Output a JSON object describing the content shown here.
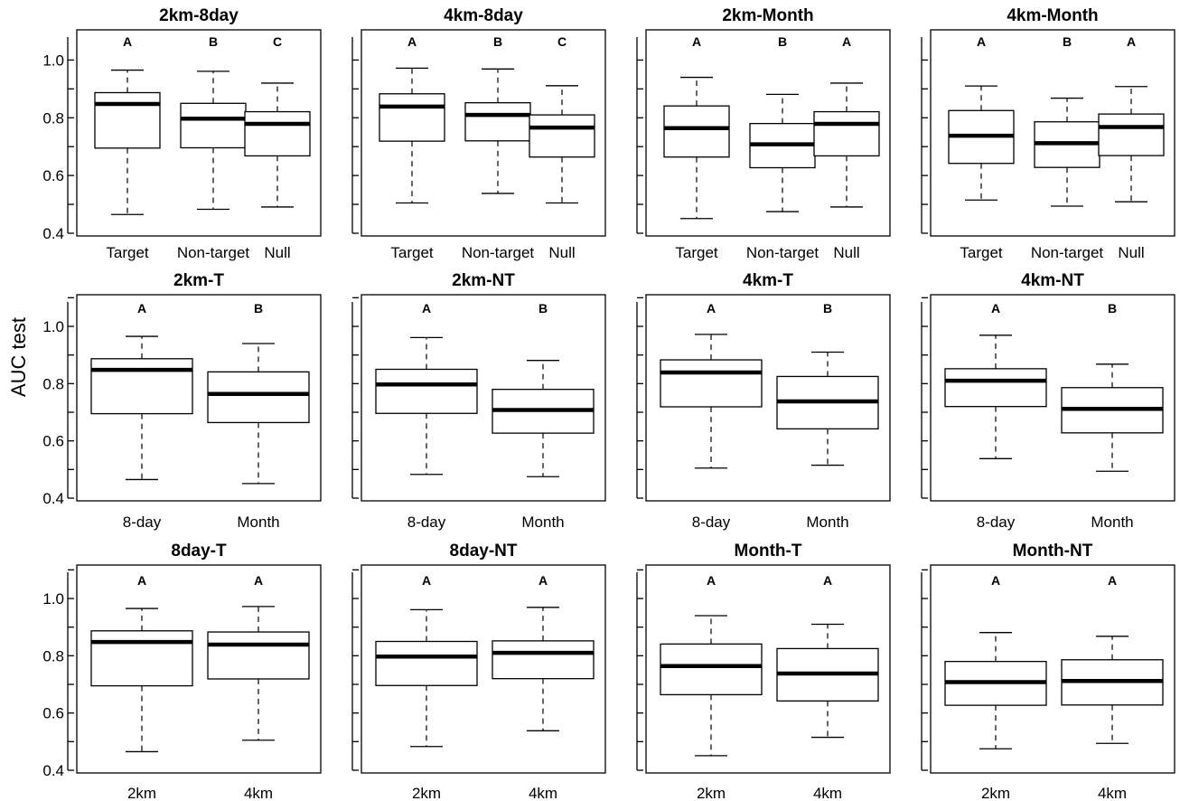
{
  "y_axis_label": "AUC test",
  "chart_data": [
    {
      "type": "box",
      "title": "2km-8day",
      "ylim": [
        0.4,
        1.1
      ],
      "yticks": [
        "0.4",
        "0.6",
        "0.8",
        "1.0"
      ],
      "categories": [
        "Target",
        "Non-target",
        "Null"
      ],
      "letters": [
        "A",
        "B",
        "C"
      ],
      "boxes": [
        {
          "min": 0.465,
          "q1": 0.695,
          "median": 0.848,
          "q3": 0.887,
          "max": 0.965
        },
        {
          "min": 0.483,
          "q1": 0.696,
          "median": 0.797,
          "q3": 0.85,
          "max": 0.961
        },
        {
          "min": 0.491,
          "q1": 0.668,
          "median": 0.779,
          "q3": 0.821,
          "max": 0.92
        }
      ]
    },
    {
      "type": "box",
      "title": "4km-8day",
      "ylim": [
        0.4,
        1.1
      ],
      "yticks": [
        "0.4",
        "0.6",
        "0.8",
        "1.0"
      ],
      "categories": [
        "Target",
        "Non-target",
        "Null"
      ],
      "letters": [
        "A",
        "B",
        "C"
      ],
      "boxes": [
        {
          "min": 0.505,
          "q1": 0.719,
          "median": 0.839,
          "q3": 0.883,
          "max": 0.972
        },
        {
          "min": 0.538,
          "q1": 0.72,
          "median": 0.81,
          "q3": 0.852,
          "max": 0.969
        },
        {
          "min": 0.505,
          "q1": 0.664,
          "median": 0.766,
          "q3": 0.81,
          "max": 0.911
        }
      ]
    },
    {
      "type": "box",
      "title": "2km-Month",
      "ylim": [
        0.4,
        1.1
      ],
      "yticks": [
        "0.4",
        "0.6",
        "0.8",
        "1.0"
      ],
      "categories": [
        "Target",
        "Non-target",
        "Null"
      ],
      "letters": [
        "A",
        "B",
        "A"
      ],
      "boxes": [
        {
          "min": 0.451,
          "q1": 0.664,
          "median": 0.764,
          "q3": 0.841,
          "max": 0.94
        },
        {
          "min": 0.475,
          "q1": 0.627,
          "median": 0.708,
          "q3": 0.78,
          "max": 0.881
        },
        {
          "min": 0.491,
          "q1": 0.668,
          "median": 0.779,
          "q3": 0.821,
          "max": 0.92
        }
      ]
    },
    {
      "type": "box",
      "title": "4km-Month",
      "ylim": [
        0.4,
        1.1
      ],
      "yticks": [
        "0.4",
        "0.6",
        "0.8",
        "1.0"
      ],
      "categories": [
        "Target",
        "Non-target",
        "Null"
      ],
      "letters": [
        "A",
        "B",
        "A"
      ],
      "boxes": [
        {
          "min": 0.515,
          "q1": 0.642,
          "median": 0.738,
          "q3": 0.825,
          "max": 0.91
        },
        {
          "min": 0.494,
          "q1": 0.628,
          "median": 0.712,
          "q3": 0.786,
          "max": 0.868
        },
        {
          "min": 0.509,
          "q1": 0.669,
          "median": 0.768,
          "q3": 0.813,
          "max": 0.908
        }
      ]
    },
    {
      "type": "box",
      "title": "2km-T",
      "ylim": [
        0.4,
        1.1
      ],
      "yticks": [
        "0.4",
        "0.6",
        "0.8",
        "1.0"
      ],
      "categories": [
        "8-day",
        "Month"
      ],
      "letters": [
        "A",
        "B"
      ],
      "boxes": [
        {
          "min": 0.465,
          "q1": 0.695,
          "median": 0.848,
          "q3": 0.887,
          "max": 0.965
        },
        {
          "min": 0.451,
          "q1": 0.664,
          "median": 0.764,
          "q3": 0.841,
          "max": 0.94
        }
      ]
    },
    {
      "type": "box",
      "title": "2km-NT",
      "ylim": [
        0.4,
        1.1
      ],
      "yticks": [
        "0.4",
        "0.6",
        "0.8",
        "1.0"
      ],
      "categories": [
        "8-day",
        "Month"
      ],
      "letters": [
        "A",
        "B"
      ],
      "boxes": [
        {
          "min": 0.483,
          "q1": 0.696,
          "median": 0.797,
          "q3": 0.85,
          "max": 0.961
        },
        {
          "min": 0.475,
          "q1": 0.627,
          "median": 0.708,
          "q3": 0.78,
          "max": 0.881
        }
      ]
    },
    {
      "type": "box",
      "title": "4km-T",
      "ylim": [
        0.4,
        1.1
      ],
      "yticks": [
        "0.4",
        "0.6",
        "0.8",
        "1.0"
      ],
      "categories": [
        "8-day",
        "Month"
      ],
      "letters": [
        "A",
        "B"
      ],
      "boxes": [
        {
          "min": 0.505,
          "q1": 0.719,
          "median": 0.839,
          "q3": 0.883,
          "max": 0.972
        },
        {
          "min": 0.515,
          "q1": 0.642,
          "median": 0.738,
          "q3": 0.825,
          "max": 0.91
        }
      ]
    },
    {
      "type": "box",
      "title": "4km-NT",
      "ylim": [
        0.4,
        1.1
      ],
      "yticks": [
        "0.4",
        "0.6",
        "0.8",
        "1.0"
      ],
      "categories": [
        "8-day",
        "Month"
      ],
      "letters": [
        "A",
        "B"
      ],
      "boxes": [
        {
          "min": 0.538,
          "q1": 0.72,
          "median": 0.81,
          "q3": 0.852,
          "max": 0.969
        },
        {
          "min": 0.494,
          "q1": 0.628,
          "median": 0.712,
          "q3": 0.786,
          "max": 0.868
        }
      ]
    },
    {
      "type": "box",
      "title": "8day-T",
      "ylim": [
        0.4,
        1.1
      ],
      "yticks": [
        "0.4",
        "0.6",
        "0.8",
        "1.0"
      ],
      "categories": [
        "2km",
        "4km"
      ],
      "letters": [
        "A",
        "A"
      ],
      "boxes": [
        {
          "min": 0.465,
          "q1": 0.695,
          "median": 0.848,
          "q3": 0.887,
          "max": 0.965
        },
        {
          "min": 0.505,
          "q1": 0.719,
          "median": 0.839,
          "q3": 0.883,
          "max": 0.972
        }
      ]
    },
    {
      "type": "box",
      "title": "8day-NT",
      "ylim": [
        0.4,
        1.1
      ],
      "yticks": [
        "0.4",
        "0.6",
        "0.8",
        "1.0"
      ],
      "categories": [
        "2km",
        "4km"
      ],
      "letters": [
        "A",
        "A"
      ],
      "boxes": [
        {
          "min": 0.483,
          "q1": 0.696,
          "median": 0.797,
          "q3": 0.85,
          "max": 0.961
        },
        {
          "min": 0.538,
          "q1": 0.72,
          "median": 0.81,
          "q3": 0.852,
          "max": 0.969
        }
      ]
    },
    {
      "type": "box",
      "title": "Month-T",
      "ylim": [
        0.4,
        1.1
      ],
      "yticks": [
        "0.4",
        "0.6",
        "0.8",
        "1.0"
      ],
      "categories": [
        "2km",
        "4km"
      ],
      "letters": [
        "A",
        "A"
      ],
      "boxes": [
        {
          "min": 0.451,
          "q1": 0.664,
          "median": 0.764,
          "q3": 0.841,
          "max": 0.94
        },
        {
          "min": 0.515,
          "q1": 0.642,
          "median": 0.738,
          "q3": 0.825,
          "max": 0.91
        }
      ]
    },
    {
      "type": "box",
      "title": "Month-NT",
      "ylim": [
        0.4,
        1.1
      ],
      "yticks": [
        "0.4",
        "0.6",
        "0.8",
        "1.0"
      ],
      "categories": [
        "2km",
        "4km"
      ],
      "letters": [
        "A",
        "A"
      ],
      "boxes": [
        {
          "min": 0.475,
          "q1": 0.627,
          "median": 0.708,
          "q3": 0.78,
          "max": 0.881
        },
        {
          "min": 0.494,
          "q1": 0.628,
          "median": 0.712,
          "q3": 0.786,
          "max": 0.868
        }
      ]
    }
  ]
}
